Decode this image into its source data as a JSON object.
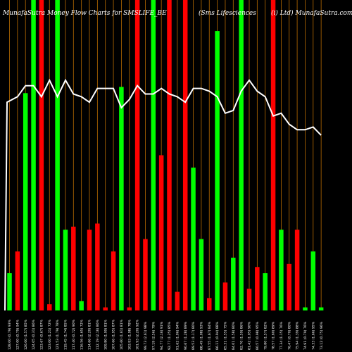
{
  "chart_data": {
    "type": "bar",
    "title_left": "MunafaSutra  Money Flow  Charts for SMSLIFE_BE",
    "title_center": "(Sms Lifesciences",
    "title_right": "(i) Ltd) MunafaSutra.com",
    "colors": {
      "background": "#000000",
      "up": "#00ff00",
      "down": "#ff0000",
      "line": "#ffffff",
      "grid": "#b86b00"
    },
    "bar_pct_of_max": [
      12,
      19,
      70,
      100,
      100,
      2,
      100,
      26,
      27,
      3,
      26,
      28,
      1,
      19,
      72,
      1,
      100,
      23,
      100,
      50,
      100,
      6,
      100,
      46,
      23,
      4,
      90,
      9,
      17,
      100,
      7,
      14,
      12,
      100,
      26,
      15,
      26,
      1,
      19,
      1
    ],
    "bar_direction": [
      "up",
      "down",
      "up",
      "up",
      "down",
      "down",
      "up",
      "up",
      "down",
      "up",
      "down",
      "down",
      "down",
      "down",
      "up",
      "down",
      "down",
      "down",
      "up",
      "down",
      "down",
      "down",
      "down",
      "up",
      "up",
      "down",
      "up",
      "down",
      "up",
      "up",
      "down",
      "down",
      "up",
      "down",
      "up",
      "down",
      "down",
      "up",
      "up",
      "up"
    ],
    "line_pct": [
      73,
      75,
      79,
      79,
      75,
      81,
      75,
      81,
      76,
      75,
      73,
      78,
      78,
      78,
      71,
      74,
      79,
      76,
      76,
      78,
      76,
      75,
      73,
      78,
      78,
      77,
      75,
      69,
      70,
      77,
      81,
      77,
      75,
      68,
      69,
      65,
      63,
      63,
      64,
      61
    ],
    "x_labels": [
      "128.00 (0.79) 93%",
      "127.00 (0.79) 94%",
      "126.00 (1.57) 85%",
      "124.05 (0.31) 86%",
      "123.67 (0.67) 87%",
      "123.00 (1.21) 72%",
      "121.53 (1.79) 78%",
      "119.45 (1.74) 85%",
      "117.40 (0.72) 90%",
      "116.56 (1.65) 72%",
      "114.66 (2.20) 81%",
      "112.19 (2.16) 86%",
      "109.80 (1.99) 81%",
      "107.66 (1.95) 87%",
      "105.60 (1.61) 81%",
      "103.93 (1.98) 78%",
      "101.93 (2.20) 92%",
      "99.73 (2.61) 98%",
      "97.19 (2.56) 79%",
      "94.77 (2.16) 91%",
      "92.77 (1.25) 85%",
      "91.62 (1.06) 94%",
      "90.67 (1.28) 89%",
      "89.53 (1.17) 80%",
      "88.49 (1.08) 93%",
      "87.55 (1.67) 84%",
      "86.11 (0.94) 88%",
      "85.31 (1.55) 75%",
      "84.01 (1.58) 80%",
      "82.70 (1.59) 86%",
      "81.42 (1.05) 90%",
      "80.57 (0.98) 95%",
      "79.80 (1.57) 82%",
      "78.57 (1.60) 89%",
      "77.34 (1.15) 76%",
      "76.47 (0.70) 80%",
      "75.94 (1.39) 88%",
      "74.91 (0.79) 76%",
      "74.33 (1.66) 95%",
      "73.12 (0.75) 96%"
    ]
  }
}
